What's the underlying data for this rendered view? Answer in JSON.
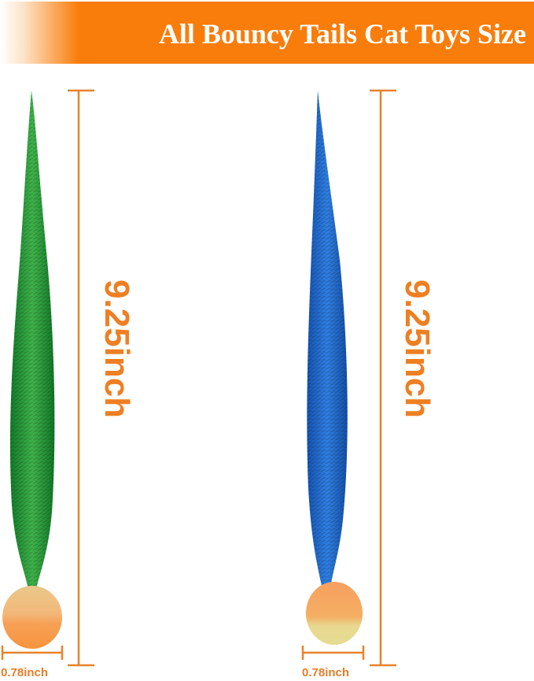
{
  "title": "All Bouncy Tails Cat Toys Size",
  "colors": {
    "banner": "#f97d0b",
    "measure": "#e8822a",
    "green_toy": "#1f9a3a",
    "blue_toy": "#1f63c4",
    "ball": "#f6a05a"
  },
  "toys": [
    {
      "name": "green",
      "length_label": "9.25inch",
      "ball_label": "0.78inch"
    },
    {
      "name": "blue",
      "length_label": "9.25inch",
      "ball_label": "0.78inch"
    }
  ]
}
